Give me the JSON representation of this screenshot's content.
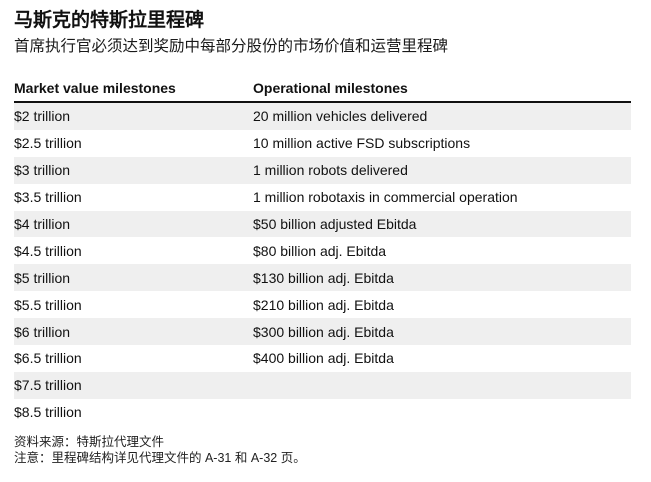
{
  "header": {
    "title": "马斯克的特斯拉里程碑",
    "subtitle": "首席执行官必须达到奖励中每部分股份的市场价值和运营里程碑"
  },
  "table": {
    "columns": [
      "Market value milestones",
      "Operational milestones"
    ],
    "rows": [
      [
        "$2 trillion",
        "20 million vehicles delivered"
      ],
      [
        "$2.5 trillion",
        "10 million active FSD subscriptions"
      ],
      [
        "$3 trillion",
        "1 million robots delivered"
      ],
      [
        "$3.5 trillion",
        "1 million robotaxis in commercial operation"
      ],
      [
        "$4 trillion",
        "$50 billion adjusted Ebitda"
      ],
      [
        "$4.5 trillion",
        "$80 billion adj. Ebitda"
      ],
      [
        "$5 trillion",
        "$130 billion adj. Ebitda"
      ],
      [
        "$5.5 trillion",
        "$210 billion adj. Ebitda"
      ],
      [
        "$6 trillion",
        "$300 billion adj. Ebitda"
      ],
      [
        "$6.5 trillion",
        "$400 billion adj. Ebitda"
      ],
      [
        "$7.5 trillion",
        ""
      ],
      [
        "$8.5 trillion",
        ""
      ]
    ]
  },
  "footer": {
    "source": "资料来源：特斯拉代理文件",
    "note": "注意：里程碑结构详见代理文件的 A-31 和 A-32 页。"
  }
}
